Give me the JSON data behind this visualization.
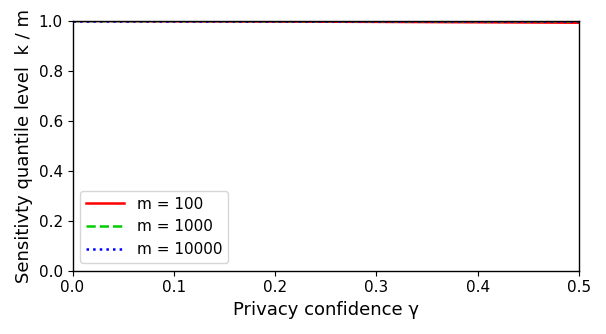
{
  "m_values": [
    100,
    1000,
    10000
  ],
  "colors": [
    "#ff0000",
    "#00cc00",
    "#0000ff"
  ],
  "linestyles": [
    "solid",
    "dashed",
    "dotted"
  ],
  "linewidths": [
    1.8,
    1.8,
    1.8
  ],
  "gamma_min": 0.0,
  "gamma_max": 0.5,
  "n_points": 500,
  "ylim": [
    0.0,
    1.0
  ],
  "xlabel": "Privacy confidence γ",
  "ylabel": "Sensitivty quantile level  k / m",
  "legend_labels": [
    "m = 100",
    "m = 1000",
    "m = 10000"
  ],
  "legend_loc": "lower left",
  "background_color": "#ffffff",
  "tick_label_size": 11,
  "axis_label_size": 13
}
